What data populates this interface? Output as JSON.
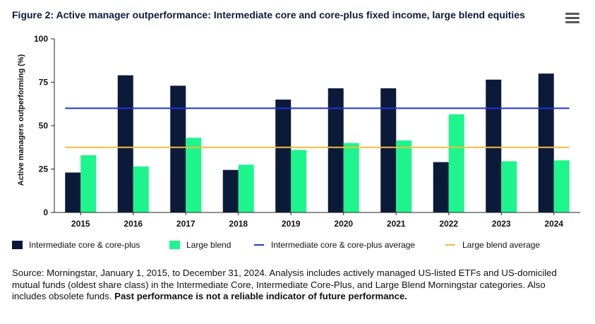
{
  "title": "Figure 2: Active manager outperformance: Intermediate core and core-plus fixed income, large blend equities",
  "menu_icon": "hamburger-menu-icon",
  "chart_data": {
    "type": "bar",
    "categories": [
      "2015",
      "2016",
      "2017",
      "2018",
      "2019",
      "2020",
      "2021",
      "2022",
      "2023",
      "2024"
    ],
    "series": [
      {
        "name": "Intermediate core & core-plus",
        "color": "#0c1a3a",
        "values": [
          23,
          79,
          73,
          24.5,
          65,
          71.5,
          71.5,
          29,
          76.5,
          80
        ]
      },
      {
        "name": "Large blend",
        "color": "#1ef58c",
        "values": [
          33,
          26.5,
          43,
          27.5,
          36,
          40,
          41.5,
          56.5,
          29.5,
          30
        ]
      }
    ],
    "reference_lines": [
      {
        "name": "Intermediate core & core-plus average",
        "color": "#2233d4",
        "value": 60
      },
      {
        "name": "Large blend average",
        "color": "#f2bb3a",
        "value": 37.5
      }
    ],
    "ylabel": "Active managers outperforming (%)",
    "xlabel": "",
    "ylim": [
      0,
      100
    ],
    "yticks": [
      "0",
      "25",
      "50",
      "75",
      "100"
    ],
    "grid": false,
    "legend_position": "bottom"
  },
  "source": {
    "text": "Source: Morningstar, January 1, 2015, to December 31, 2024. Analysis includes actively managed US-listed ETFs and US-domiciled mutual funds (oldest share class) in the Intermediate Core, Intermediate Core-Plus, and Large Blend Morningstar categories. Also includes obsolete funds. ",
    "bold_text": "Past performance is not a reliable indicator of future performance."
  }
}
